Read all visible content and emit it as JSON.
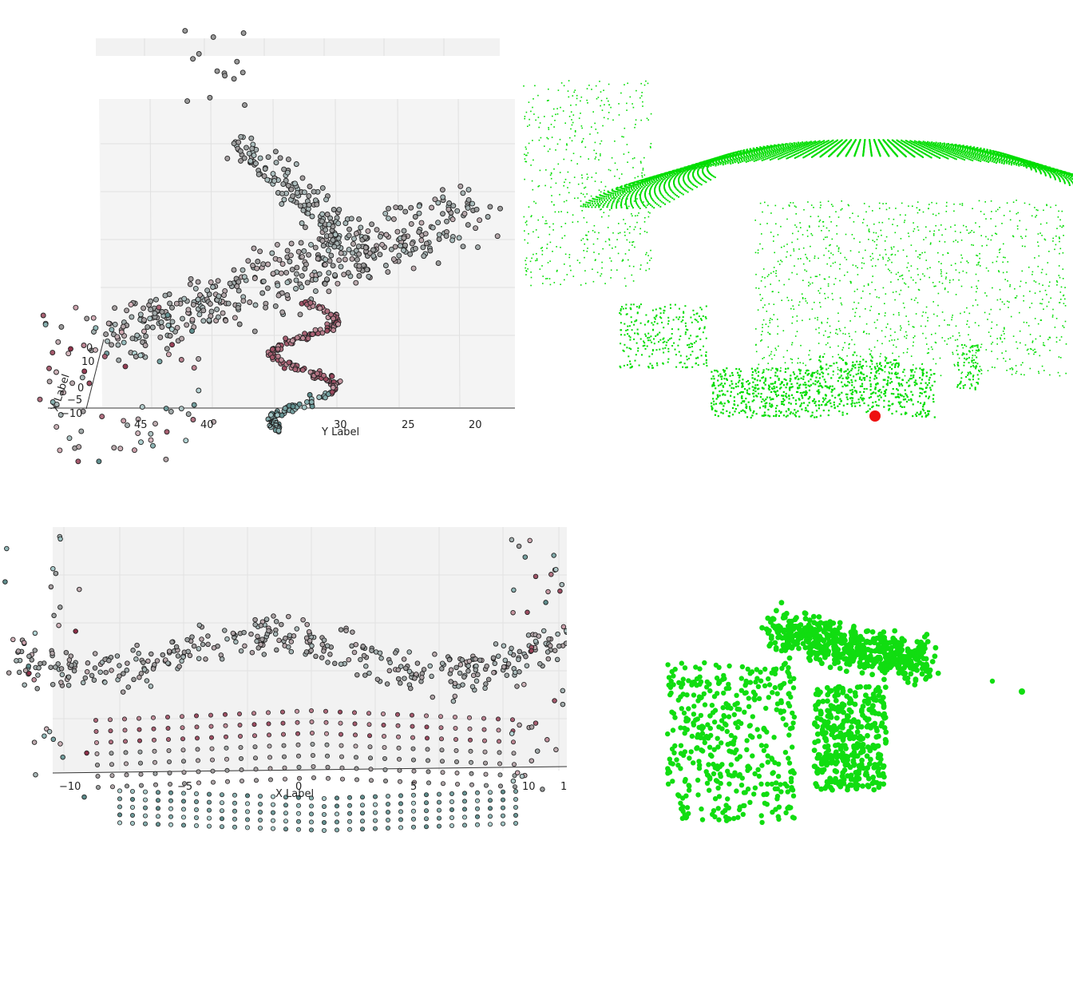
{
  "chart_data": [
    {
      "type": "scatter",
      "dims": 3,
      "title": "",
      "xlabel": "X Label",
      "ylabel": "Y Label",
      "zlabel": "",
      "y_ticks": [
        "45",
        "40",
        "35",
        "30",
        "25",
        "20"
      ],
      "x_ticks": [
        "0",
        "−5",
        "−10"
      ],
      "z_ticks": [
        "10",
        "0"
      ],
      "grid": true,
      "marker_edge": "#222222",
      "colormap": [
        "#8b2c45",
        "#d8b8bf",
        "#9a9a9a",
        "#b8d8d8",
        "#5a8a8a"
      ]
    },
    {
      "type": "scatter",
      "dims": 3,
      "title": "",
      "point_color": "#00dd00",
      "highlight_color": "#ee1111",
      "grid": false
    },
    {
      "type": "scatter",
      "dims": 3,
      "title": "",
      "xlabel": "X Label",
      "x_ticks": [
        "−10",
        "−5",
        "0",
        "5",
        "10",
        "1"
      ],
      "grid": true,
      "marker_edge": "#222222",
      "colormap": [
        "#8b2c45",
        "#d8b8bf",
        "#9a9a9a",
        "#b8d8d8",
        "#5a8a8a"
      ]
    },
    {
      "type": "scatter",
      "dims": 3,
      "title": "",
      "point_color": "#11dd11",
      "grid": false
    }
  ]
}
